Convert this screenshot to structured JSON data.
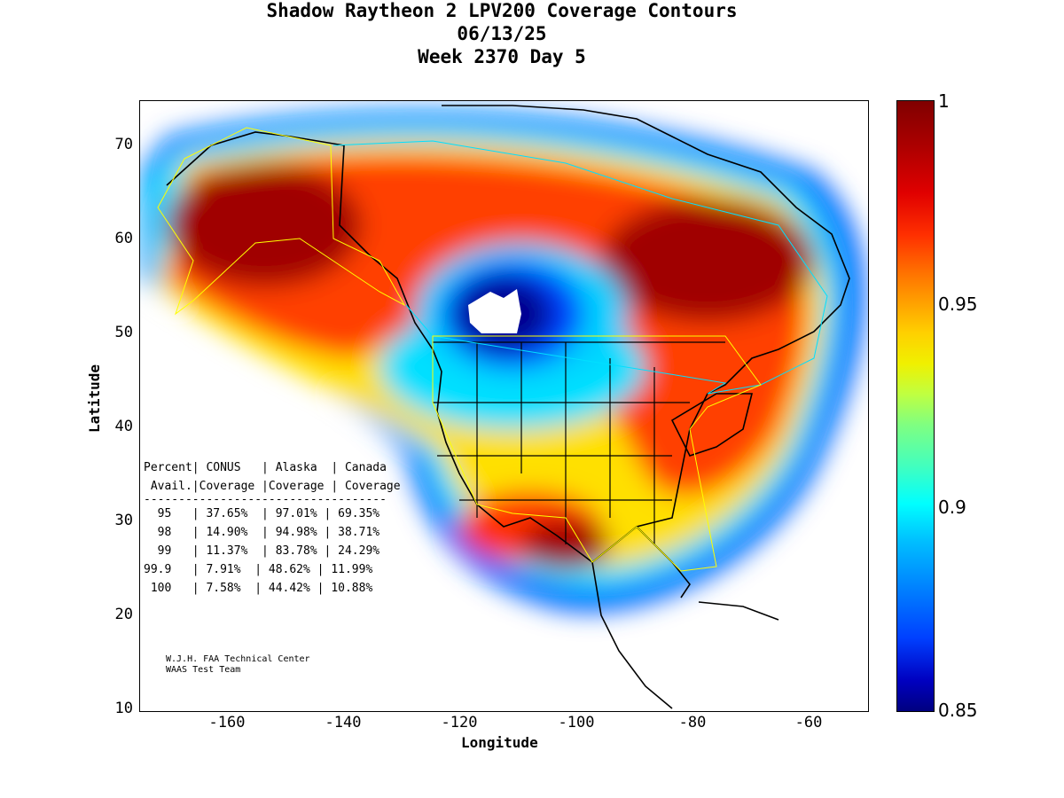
{
  "title": {
    "line1": "Shadow Raytheon 2 LPV200 Coverage Contours",
    "line2": "06/13/25",
    "line3": "Week 2370 Day 5"
  },
  "axes": {
    "xlabel": "Longitude",
    "ylabel": "Latitude",
    "x_ticks": [
      "-160",
      "-140",
      "-120",
      "-100",
      "-80",
      "-60"
    ],
    "y_ticks": [
      "70",
      "60",
      "50",
      "40",
      "30",
      "20",
      "10"
    ],
    "xlim": [
      -175,
      -50
    ],
    "ylim": [
      10,
      75
    ]
  },
  "colorbar": {
    "ticks": [
      "1",
      "0.95",
      "0.9",
      "0.85"
    ],
    "range": [
      0.85,
      1
    ],
    "colormap": "jet"
  },
  "stats_table": {
    "header1": "Percent| CONUS   | Alaska  | Canada",
    "header2": " Avail.|Coverage |Coverage | Coverage",
    "rule": "-----------------------------------",
    "rows": [
      "  95   | 37.65%  | 97.01% | 69.35%",
      "  98   | 14.90%  | 94.98% | 38.71%",
      "  99   | 11.37%  | 83.78% | 24.29%",
      "99.9   | 7.91%  | 48.62% | 11.99%",
      " 100   | 7.58%  | 44.42% | 10.88%"
    ]
  },
  "credit": {
    "line1": "W.J.H. FAA Technical Center",
    "line2": "WAAS Test Team"
  },
  "colors": {
    "dark_red": "#800000",
    "red": "#ff2000",
    "orange": "#ff9000",
    "yellow": "#f0f000",
    "cyan": "#00e0ff",
    "blue": "#0040ff",
    "navy": "#000090"
  }
}
